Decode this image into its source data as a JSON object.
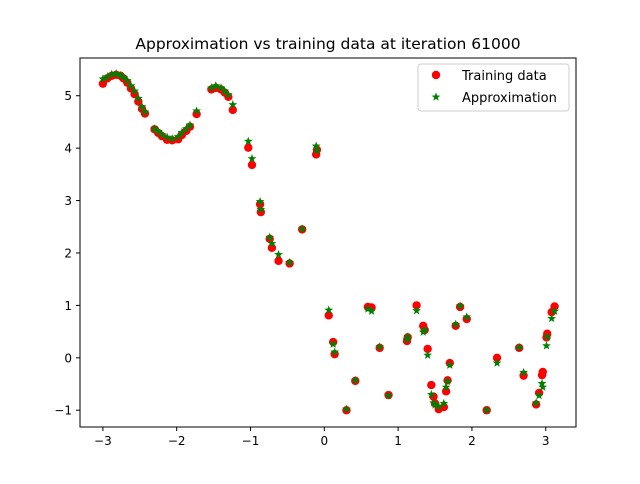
{
  "chart_data": {
    "type": "scatter",
    "title": "Approximation vs training data at iteration 61000",
    "xlabel": "",
    "ylabel": "",
    "xlim": [
      -3.31,
      3.41
    ],
    "ylim": [
      -1.32,
      5.72
    ],
    "xticks": [
      -3,
      -2,
      -1,
      0,
      1,
      2,
      3
    ],
    "xtick_labels": [
      "−3",
      "−2",
      "−1",
      "0",
      "1",
      "2",
      "3"
    ],
    "yticks": [
      -1,
      0,
      1,
      2,
      3,
      4,
      5
    ],
    "ytick_labels": [
      "−1",
      "0",
      "1",
      "2",
      "3",
      "4",
      "5"
    ],
    "grid": false,
    "legend": "top-right",
    "series": [
      {
        "name": "Training data",
        "marker": "circle",
        "color": "#ff0000",
        "points": [
          [
            -3.0,
            5.23
          ],
          [
            -2.94,
            5.33
          ],
          [
            -2.88,
            5.38
          ],
          [
            -2.82,
            5.4
          ],
          [
            -2.76,
            5.38
          ],
          [
            -2.72,
            5.33
          ],
          [
            -2.67,
            5.25
          ],
          [
            -2.62,
            5.14
          ],
          [
            -2.57,
            5.03
          ],
          [
            -2.52,
            4.89
          ],
          [
            -2.47,
            4.75
          ],
          [
            -2.43,
            4.66
          ],
          [
            -2.3,
            4.36
          ],
          [
            -2.25,
            4.29
          ],
          [
            -2.2,
            4.23
          ],
          [
            -2.13,
            4.16
          ],
          [
            -2.06,
            4.15
          ],
          [
            -1.98,
            4.17
          ],
          [
            -1.93,
            4.25
          ],
          [
            -1.87,
            4.33
          ],
          [
            -1.82,
            4.41
          ],
          [
            -1.73,
            4.65
          ],
          [
            -1.53,
            5.12
          ],
          [
            -1.47,
            5.15
          ],
          [
            -1.4,
            5.12
          ],
          [
            -1.35,
            5.06
          ],
          [
            -1.3,
            4.98
          ],
          [
            -1.24,
            4.73
          ],
          [
            -1.03,
            4.01
          ],
          [
            -0.98,
            3.68
          ],
          [
            -0.87,
            2.93
          ],
          [
            -0.86,
            2.78
          ],
          [
            -0.74,
            2.27
          ],
          [
            -0.71,
            2.1
          ],
          [
            -0.62,
            1.85
          ],
          [
            -0.47,
            1.8
          ],
          [
            -0.3,
            2.45
          ],
          [
            -0.11,
            3.88
          ],
          [
            -0.1,
            3.97
          ],
          [
            0.06,
            0.81
          ],
          [
            0.12,
            0.3
          ],
          [
            0.14,
            0.07
          ],
          [
            0.3,
            -1.0
          ],
          [
            0.42,
            -0.44
          ],
          [
            0.59,
            0.97
          ],
          [
            0.64,
            0.96
          ],
          [
            0.75,
            0.19
          ],
          [
            0.87,
            -0.71
          ],
          [
            1.12,
            0.32
          ],
          [
            1.13,
            0.39
          ],
          [
            1.25,
            1.0
          ],
          [
            1.34,
            0.61
          ],
          [
            1.36,
            0.53
          ],
          [
            1.4,
            0.17
          ],
          [
            1.45,
            -0.52
          ],
          [
            1.48,
            -0.74
          ],
          [
            1.5,
            -0.87
          ],
          [
            1.55,
            -0.98
          ],
          [
            1.62,
            -0.94
          ],
          [
            1.65,
            -0.64
          ],
          [
            1.67,
            -0.43
          ],
          [
            1.7,
            -0.1
          ],
          [
            1.78,
            0.61
          ],
          [
            1.84,
            0.97
          ],
          [
            1.93,
            0.74
          ],
          [
            2.2,
            -1.0
          ],
          [
            2.34,
            0.0
          ],
          [
            2.64,
            0.19
          ],
          [
            2.7,
            -0.34
          ],
          [
            2.87,
            -0.89
          ],
          [
            2.91,
            -0.67
          ],
          [
            2.95,
            -0.33
          ],
          [
            2.96,
            -0.27
          ],
          [
            3.01,
            0.39
          ],
          [
            3.02,
            0.46
          ],
          [
            3.08,
            0.87
          ],
          [
            3.12,
            0.98
          ]
        ]
      },
      {
        "name": "Approximation",
        "marker": "star",
        "color": "#008000",
        "points": [
          [
            -3.0,
            5.32
          ],
          [
            -2.94,
            5.36
          ],
          [
            -2.88,
            5.41
          ],
          [
            -2.82,
            5.42
          ],
          [
            -2.76,
            5.39
          ],
          [
            -2.72,
            5.35
          ],
          [
            -2.67,
            5.29
          ],
          [
            -2.62,
            5.19
          ],
          [
            -2.57,
            5.09
          ],
          [
            -2.52,
            4.95
          ],
          [
            -2.47,
            4.79
          ],
          [
            -2.43,
            4.69
          ],
          [
            -2.3,
            4.37
          ],
          [
            -2.25,
            4.32
          ],
          [
            -2.2,
            4.26
          ],
          [
            -2.13,
            4.21
          ],
          [
            -2.06,
            4.18
          ],
          [
            -1.98,
            4.22
          ],
          [
            -1.93,
            4.3
          ],
          [
            -1.87,
            4.37
          ],
          [
            -1.82,
            4.44
          ],
          [
            -1.73,
            4.71
          ],
          [
            -1.53,
            5.15
          ],
          [
            -1.47,
            5.19
          ],
          [
            -1.4,
            5.15
          ],
          [
            -1.35,
            5.09
          ],
          [
            -1.3,
            5.02
          ],
          [
            -1.24,
            4.83
          ],
          [
            -1.03,
            4.13
          ],
          [
            -0.98,
            3.8
          ],
          [
            -0.87,
            2.98
          ],
          [
            -0.86,
            2.83
          ],
          [
            -0.74,
            2.3
          ],
          [
            -0.71,
            2.18
          ],
          [
            -0.62,
            1.97
          ],
          [
            -0.47,
            1.82
          ],
          [
            -0.3,
            2.46
          ],
          [
            -0.11,
            4.04
          ],
          [
            -0.1,
            3.95
          ],
          [
            0.06,
            0.91
          ],
          [
            0.12,
            0.26
          ],
          [
            0.14,
            0.11
          ],
          [
            0.3,
            -0.98
          ],
          [
            0.42,
            -0.43
          ],
          [
            0.59,
            0.93
          ],
          [
            0.64,
            0.89
          ],
          [
            0.75,
            0.21
          ],
          [
            0.87,
            -0.72
          ],
          [
            1.12,
            0.35
          ],
          [
            1.13,
            0.4
          ],
          [
            1.25,
            0.9
          ],
          [
            1.34,
            0.49
          ],
          [
            1.36,
            0.53
          ],
          [
            1.4,
            0.05
          ],
          [
            1.45,
            -0.7
          ],
          [
            1.48,
            -0.86
          ],
          [
            1.5,
            -0.9
          ],
          [
            1.55,
            -0.93
          ],
          [
            1.62,
            -0.87
          ],
          [
            1.65,
            -0.56
          ],
          [
            1.67,
            -0.45
          ],
          [
            1.7,
            -0.14
          ],
          [
            1.78,
            0.64
          ],
          [
            1.84,
            0.99
          ],
          [
            1.93,
            0.78
          ],
          [
            2.2,
            -1.0
          ],
          [
            2.34,
            -0.1
          ],
          [
            2.64,
            0.2
          ],
          [
            2.7,
            -0.28
          ],
          [
            2.87,
            -0.86
          ],
          [
            2.91,
            -0.72
          ],
          [
            2.95,
            -0.49
          ],
          [
            2.96,
            -0.56
          ],
          [
            3.01,
            0.23
          ],
          [
            3.02,
            0.4
          ],
          [
            3.08,
            0.75
          ],
          [
            3.12,
            0.89
          ]
        ]
      }
    ]
  }
}
